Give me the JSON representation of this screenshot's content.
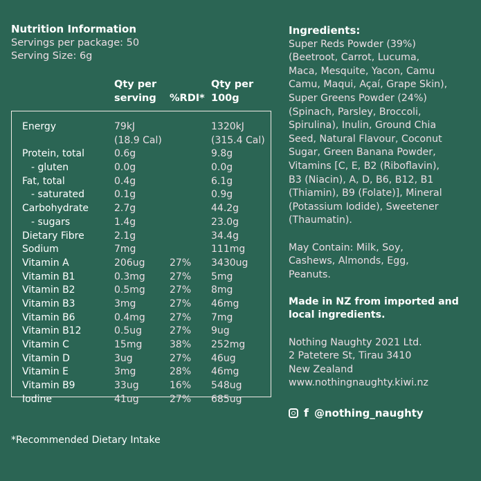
{
  "nutrition": {
    "title": "Nutrition Information",
    "servings_per_package": "Servings per package: 50",
    "serving_size": "Serving Size: 6g",
    "columns": {
      "per_serving": "Qty per\nserving",
      "rdi": "%RDI*",
      "per_100g": "Qty per\n100g"
    },
    "rows": [
      {
        "name": "Energy",
        "serving": "79kJ\n(18.9 Cal)",
        "rdi": "",
        "per100": "1320kJ\n(315.4 Cal)"
      },
      {
        "name": "Protein, total",
        "serving": "0.6g",
        "rdi": "",
        "per100": "9.8g"
      },
      {
        "name": "- gluten",
        "serving": "0.0g",
        "rdi": "",
        "per100": "0.0g"
      },
      {
        "name": "Fat, total",
        "serving": "0.4g",
        "rdi": "",
        "per100": "6.1g"
      },
      {
        "name": "- saturated",
        "serving": "0.1g",
        "rdi": "",
        "per100": "0.9g"
      },
      {
        "name": "Carbohydrate",
        "serving": "2.7g",
        "rdi": "",
        "per100": "44.2g"
      },
      {
        "name": "- sugars",
        "serving": "1.4g",
        "rdi": "",
        "per100": "23.0g"
      },
      {
        "name": "Dietary Fibre",
        "serving": "2.1g",
        "rdi": "",
        "per100": "34.4g"
      },
      {
        "name": "Sodium",
        "serving": "7mg",
        "rdi": "",
        "per100": "111mg"
      },
      {
        "name": "Vitamin A",
        "serving": "206ug",
        "rdi": "27%",
        "per100": "3430ug"
      },
      {
        "name": "Vitamin B1",
        "serving": "0.3mg",
        "rdi": "27%",
        "per100": "5mg"
      },
      {
        "name": "Vitamin B2",
        "serving": "0.5mg",
        "rdi": "27%",
        "per100": "8mg"
      },
      {
        "name": "Vitamin B3",
        "serving": "3mg",
        "rdi": "27%",
        "per100": "46mg"
      },
      {
        "name": "Vitamin B6",
        "serving": "0.4mg",
        "rdi": "27%",
        "per100": "7mg"
      },
      {
        "name": "Vitamin B12",
        "serving": "0.5ug",
        "rdi": "27%",
        "per100": "9ug"
      },
      {
        "name": "Vitamin C",
        "serving": "15mg",
        "rdi": "38%",
        "per100": "252mg"
      },
      {
        "name": "Vitamin D",
        "serving": "3ug",
        "rdi": "27%",
        "per100": "46ug"
      },
      {
        "name": "Vitamin E",
        "serving": "3mg",
        "rdi": "28%",
        "per100": "46mg"
      },
      {
        "name": "Vitamin B9",
        "serving": "33ug",
        "rdi": "16%",
        "per100": "548ug"
      },
      {
        "name": "Iodine",
        "serving": "41ug",
        "rdi": "27%",
        "per100": "685ug"
      }
    ],
    "footnote": "*Recommended Dietary Intake"
  },
  "ingredients": {
    "title": "Ingredients:",
    "lines": [
      "Super Reds Powder (39%)",
      "(Beetroot, Carrot, Lucuma,",
      "Maca, Mesquite, Yacon, Camu",
      "Camu, Maqui, Açaí, Grape Skin),",
      "Super Greens Powder (24%)",
      "(Spinach, Parsley, Broccoli,",
      "Spirulina), Inulin, Ground Chia",
      "Seed, Natural Flavour, Coconut",
      "Sugar, Green Banana Powder,",
      "Vitamins [C, E, B2 (Riboflavin),",
      "B3 (Niacin), A, D, B6, B12, B1",
      "(Thiamin), B9 (Folate)], Mineral",
      "(Potassium Iodide), Sweetener",
      "(Thaumatin)."
    ],
    "may_contain": [
      "May Contain: Milk, Soy,",
      "Cashews, Almonds, Egg,",
      "Peanuts."
    ],
    "made_in": [
      "Made in NZ from imported and",
      "local ingredients."
    ],
    "company": [
      "Nothing Naughty 2021 Ltd.",
      "2 Patetere St, Tirau 3410",
      "New Zealand",
      "www.nothingnaughty.kiwi.nz"
    ]
  },
  "social": {
    "icons": [
      "instagram-icon",
      "facebook-icon"
    ],
    "facebook_glyph": "f",
    "handle": "@nothing_naughty"
  }
}
